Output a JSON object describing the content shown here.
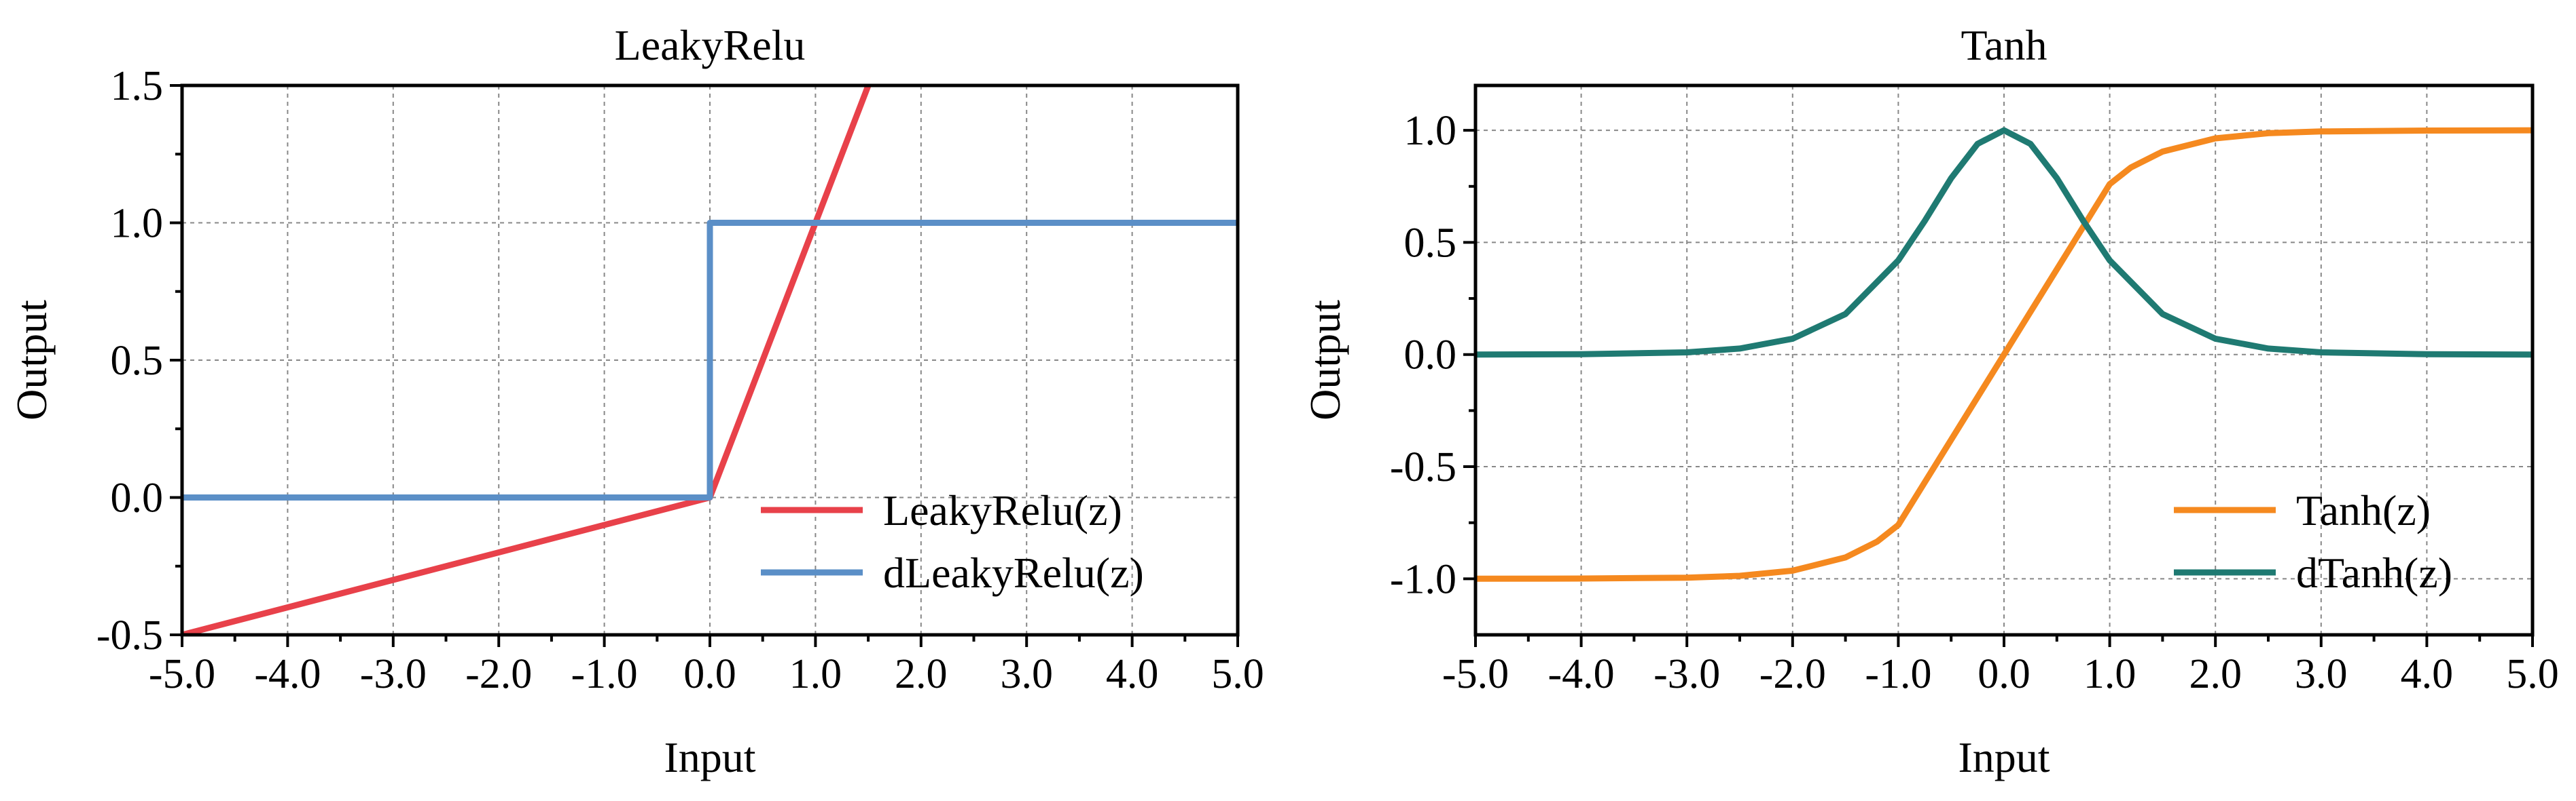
{
  "chart_data": [
    {
      "type": "line",
      "title": "LeakyRelu",
      "xlabel": "Input",
      "ylabel": "Output",
      "xlim": [
        -5,
        5
      ],
      "ylim": [
        -0.5,
        1.5
      ],
      "xticks": [
        "-5.0",
        "-4.0",
        "-3.0",
        "-2.0",
        "-1.0",
        "0.0",
        "1.0",
        "2.0",
        "3.0",
        "4.0",
        "5.0"
      ],
      "yticks": [
        "-0.5",
        "0.0",
        "0.5",
        "1.0",
        "1.5"
      ],
      "grid": true,
      "legend": "bottom-right",
      "series": [
        {
          "name": "LeakyRelu(z)",
          "color": "#e8414a",
          "x": [
            -5.0,
            0.0,
            1.55
          ],
          "y": [
            -0.5,
            0.0,
            1.55
          ]
        },
        {
          "name": "dLeakyRelu(z)",
          "color": "#5b8fc7",
          "x": [
            -5.0,
            0.0,
            0.0,
            5.0
          ],
          "y": [
            0.0,
            0.0,
            1.0,
            1.0
          ]
        }
      ]
    },
    {
      "type": "line",
      "title": "Tanh",
      "xlabel": "Input",
      "ylabel": "Output",
      "xlim": [
        -5,
        5
      ],
      "ylim": [
        -1.25,
        1.2
      ],
      "xticks": [
        "-5.0",
        "-4.0",
        "-3.0",
        "-2.0",
        "-1.0",
        "0.0",
        "1.0",
        "2.0",
        "3.0",
        "4.0",
        "5.0"
      ],
      "yticks": [
        "-1.0",
        "-0.5",
        "0.0",
        "0.5",
        "1.0"
      ],
      "grid": true,
      "legend": "bottom-right",
      "series": [
        {
          "name": "Tanh(z)",
          "color": "#f5891f",
          "x": [
            -5.0,
            -4.0,
            -3.0,
            -2.5,
            -2.0,
            -1.5,
            -1.2,
            -1.0,
            0.0,
            1.0,
            1.2,
            1.5,
            2.0,
            2.5,
            3.0,
            4.0,
            5.0
          ],
          "y": [
            -1.0,
            -0.999,
            -0.995,
            -0.987,
            -0.964,
            -0.905,
            -0.834,
            -0.76,
            0.0,
            0.76,
            0.834,
            0.905,
            0.964,
            0.987,
            0.995,
            0.999,
            1.0
          ]
        },
        {
          "name": "dTanh(z)",
          "color": "#1f7a72",
          "x": [
            -5.0,
            -4.0,
            -3.0,
            -2.5,
            -2.0,
            -1.5,
            -1.0,
            -0.75,
            -0.5,
            -0.25,
            0.0,
            0.25,
            0.5,
            0.75,
            1.0,
            1.5,
            2.0,
            2.5,
            3.0,
            4.0,
            5.0
          ],
          "y": [
            0.0002,
            0.0013,
            0.0099,
            0.0266,
            0.0707,
            0.1807,
            0.42,
            0.5959,
            0.7864,
            0.9397,
            1.0,
            0.9397,
            0.7864,
            0.5959,
            0.42,
            0.1807,
            0.0707,
            0.0266,
            0.0099,
            0.0013,
            0.0002
          ]
        }
      ]
    }
  ]
}
